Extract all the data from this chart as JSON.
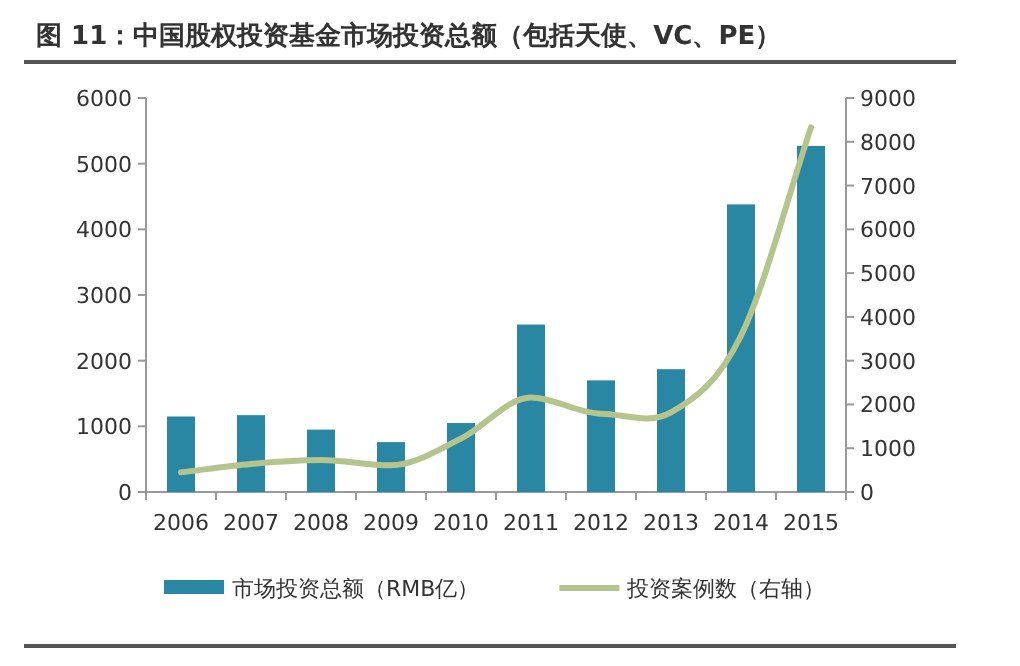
{
  "chart_data": {
    "type": "bar",
    "title": "图 11：中国股权投资基金市场投资总额（包括天使、VC、PE）",
    "categories": [
      "2006",
      "2007",
      "2008",
      "2009",
      "2010",
      "2011",
      "2012",
      "2013",
      "2014",
      "2015"
    ],
    "series": [
      {
        "name": "市场投资总额（RMB亿）",
        "color": "#2a87a3",
        "values": [
          1150,
          1170,
          950,
          760,
          1050,
          2550,
          1700,
          1870,
          4380,
          5270
        ]
      },
      {
        "name": "投资案例数（右轴）",
        "type": "line",
        "axis": "y2",
        "color": "#b4c48c",
        "values": [
          450,
          640,
          730,
          610,
          1220,
          2160,
          1790,
          1820,
          3570,
          8330
        ]
      }
    ],
    "ylim": [
      0,
      6000
    ],
    "yticks": [
      0,
      1000,
      2000,
      3000,
      4000,
      5000,
      6000
    ],
    "y2lim": [
      0,
      9000
    ],
    "y2ticks": [
      0,
      1000,
      2000,
      3000,
      4000,
      5000,
      6000,
      7000,
      8000,
      9000
    ],
    "legend": "bottom"
  }
}
